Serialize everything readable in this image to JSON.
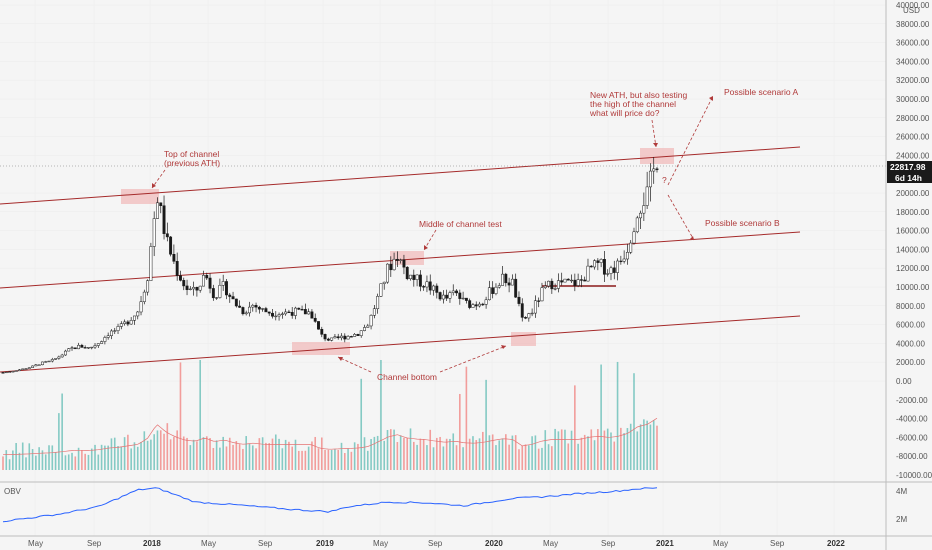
{
  "chart_data": {
    "type": "candlestick",
    "currency_label": "USD",
    "last_price_label": "22817.98",
    "timer_label": "6d 14h",
    "indicator_label": "OBV",
    "y_axis_prices": [
      "40000.00",
      "38000.00",
      "36000.00",
      "34000.00",
      "32000.00",
      "30000.00",
      "28000.00",
      "26000.00",
      "24000.00",
      "20000.00",
      "18000.00",
      "16000.00",
      "14000.00",
      "12000.00",
      "10000.00",
      "8000.00",
      "6000.00",
      "4000.00",
      "2000.00",
      "0.00"
    ],
    "y_axis_volume": [
      "-2000.00",
      "-4000.00",
      "-6000.00",
      "-8000.00",
      "-10000.00"
    ],
    "y_axis_obv": [
      "4M",
      "2M"
    ],
    "x_axis_labels": [
      {
        "label": "May",
        "bold": false
      },
      {
        "label": "Sep",
        "bold": false
      },
      {
        "label": "2018",
        "bold": true
      },
      {
        "label": "May",
        "bold": false
      },
      {
        "label": "Sep",
        "bold": false
      },
      {
        "label": "2019",
        "bold": true
      },
      {
        "label": "May",
        "bold": false
      },
      {
        "label": "Sep",
        "bold": false
      },
      {
        "label": "2020",
        "bold": true
      },
      {
        "label": "May",
        "bold": false
      },
      {
        "label": "Sep",
        "bold": false
      },
      {
        "label": "2021",
        "bold": true
      },
      {
        "label": "May",
        "bold": false
      },
      {
        "label": "Sep",
        "bold": false
      },
      {
        "label": "2022",
        "bold": true
      }
    ],
    "annotations": {
      "top_channel_1": "Top of channel",
      "top_channel_2": "(previous ATH)",
      "middle_channel": "Middle of channel test",
      "channel_bottom": "Channel bottom",
      "new_ath_1": "New ATH, but also testing",
      "new_ath_2": "the high of the channel",
      "new_ath_3": "what will price do?",
      "scenario_a": "Possible scenario A",
      "scenario_b": "Possible scenario B",
      "question_mark": "?"
    },
    "colors": {
      "up": "#26a69a",
      "down": "#ef5350",
      "candle": "#1a1a1a",
      "channel": "#a52a2a",
      "annotation": "#b03a3a",
      "highlight": "rgba(240,150,150,0.45)",
      "obv": "#2962ff",
      "volume_ma": "#e57373"
    },
    "price_anchors": [
      [
        0,
        0
      ],
      [
        1,
        0.15
      ],
      [
        2,
        0.35
      ],
      [
        3,
        0.6
      ],
      [
        4,
        1.0
      ],
      [
        5,
        1.2
      ],
      [
        6,
        1.8
      ],
      [
        7,
        2.5
      ],
      [
        8,
        2.8
      ],
      [
        9,
        2.6
      ],
      [
        10,
        3.2
      ],
      [
        11,
        4.2
      ],
      [
        12,
        4.6
      ],
      [
        13,
        5.5
      ],
      [
        14,
        6.5
      ],
      [
        15,
        10
      ],
      [
        16,
        19
      ],
      [
        17,
        14
      ],
      [
        18,
        11
      ],
      [
        19,
        9
      ],
      [
        20,
        8.5
      ],
      [
        21,
        10.5
      ],
      [
        22,
        8.2
      ],
      [
        23,
        9.2
      ],
      [
        24,
        7.5
      ],
      [
        25,
        6.5
      ],
      [
        26,
        7.2
      ],
      [
        27,
        6.6
      ],
      [
        28,
        6.4
      ],
      [
        29,
        6.3
      ],
      [
        30,
        6.5
      ],
      [
        31,
        6.4
      ],
      [
        32,
        6.4
      ],
      [
        33,
        4.0
      ],
      [
        34,
        3.4
      ],
      [
        35,
        3.7
      ],
      [
        36,
        3.9
      ],
      [
        37,
        4.2
      ],
      [
        38,
        5.2
      ],
      [
        39,
        8.0
      ],
      [
        40,
        11.0
      ],
      [
        41,
        12.5
      ],
      [
        42,
        10.5
      ],
      [
        43,
        9.8
      ],
      [
        44,
        9.4
      ],
      [
        45,
        8.5
      ],
      [
        46,
        7.8
      ],
      [
        47,
        8.5
      ],
      [
        48,
        7.4
      ],
      [
        49,
        7.2
      ],
      [
        50,
        7.8
      ],
      [
        51,
        9.0
      ],
      [
        52,
        10.0
      ],
      [
        53,
        9.5
      ],
      [
        54,
        5.5
      ],
      [
        55,
        6.5
      ],
      [
        56,
        8.5
      ],
      [
        57,
        9.5
      ],
      [
        58,
        9.5
      ],
      [
        59,
        9.5
      ],
      [
        60,
        9.6
      ],
      [
        61,
        11.0
      ],
      [
        62,
        11.5
      ],
      [
        63,
        10.8
      ],
      [
        64,
        11.5
      ],
      [
        65,
        13.5
      ],
      [
        66,
        17.5
      ],
      [
        67,
        19.0
      ],
      [
        68,
        22.8
      ]
    ],
    "obv_anchors": [
      [
        0,
        0.1
      ],
      [
        6,
        0.3
      ],
      [
        10,
        0.5
      ],
      [
        14,
        0.95
      ],
      [
        16,
        1.0
      ],
      [
        20,
        0.62
      ],
      [
        24,
        0.55
      ],
      [
        30,
        0.42
      ],
      [
        34,
        0.36
      ],
      [
        36,
        0.5
      ],
      [
        40,
        0.62
      ],
      [
        44,
        0.6
      ],
      [
        48,
        0.52
      ],
      [
        50,
        0.6
      ],
      [
        53,
        0.72
      ],
      [
        56,
        0.76
      ],
      [
        60,
        0.85
      ],
      [
        64,
        0.92
      ],
      [
        66,
        0.98
      ],
      [
        68,
        1.0
      ]
    ]
  }
}
